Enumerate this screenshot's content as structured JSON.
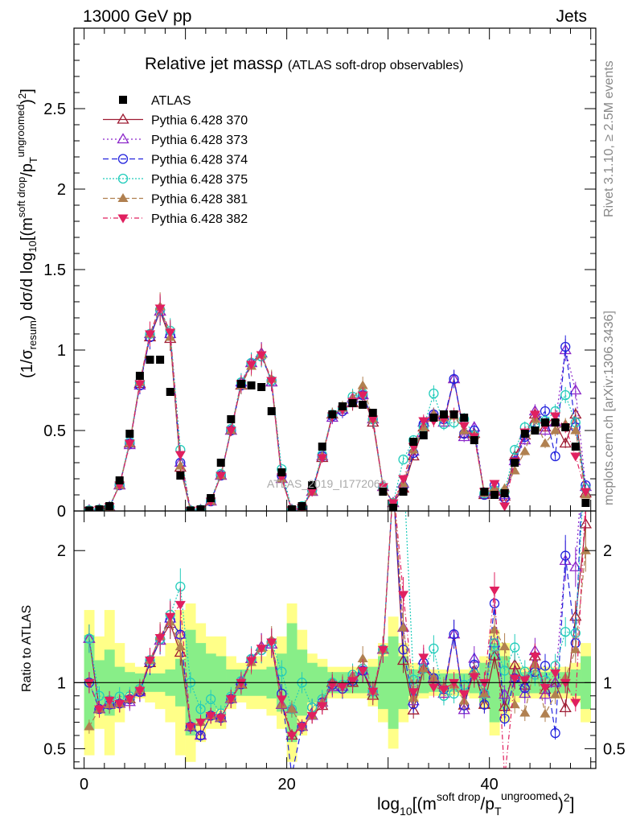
{
  "header": {
    "energy_label": "13000 GeV pp",
    "category_label": "Jets",
    "title": "Relative jet massρ",
    "subtitle": "(ATLAS soft-drop observables)",
    "side_right_top": "Rivet 3.1.10, ≥ 2.5M events",
    "side_right_bottom": "mcplots.cern.ch [arXiv:1306.3436]",
    "watermark": "ATLAS_2019_I1772062"
  },
  "axes": {
    "ylabel_main": "(1/σ_resum) dσ/d log10[(m^soft drop/p_T^ungroomed)^2]",
    "ylabel_ratio": "Ratio to ATLAS",
    "xlabel": "log10[(m^soft drop/p_T^ungroomed)^2]",
    "xlim": [
      -1,
      50.5
    ],
    "ylim_main": [
      0,
      3.0
    ],
    "ylim_ratio": [
      0.35,
      2.3
    ],
    "xticks": [
      "0",
      "20",
      "40"
    ],
    "yticks_main": [
      "0",
      "0.5",
      "1",
      "1.5",
      "2",
      "2.5"
    ],
    "yticks_ratio": [
      "0.5",
      "1",
      "2"
    ]
  },
  "colors": {
    "data": "#000000",
    "s370": "#9e1b32",
    "s373": "#8b26c9",
    "s374": "#2222dd",
    "s375": "#22ccbb",
    "s381": "#b08050",
    "s382": "#e0205f",
    "band_outer": "#ffff88",
    "band_inner": "#88ee88"
  },
  "chart_data": {
    "type": "line",
    "x": [
      0.5,
      1.5,
      2.5,
      3.5,
      4.5,
      5.5,
      6.5,
      7.5,
      8.5,
      9.5,
      10.5,
      11.5,
      12.5,
      13.5,
      14.5,
      15.5,
      16.5,
      17.5,
      18.5,
      19.5,
      20.5,
      21.5,
      22.5,
      23.5,
      24.5,
      25.5,
      26.5,
      27.5,
      28.5,
      29.5,
      30.5,
      31.5,
      32.5,
      33.5,
      34.5,
      35.5,
      36.5,
      37.5,
      38.5,
      39.5,
      40.5,
      41.5,
      42.5,
      43.5,
      44.5,
      45.5,
      46.5,
      47.5,
      48.5,
      49.5
    ],
    "data": {
      "name": "ATLAS",
      "values": [
        0.003,
        0.01,
        0.03,
        0.19,
        0.48,
        0.84,
        0.94,
        0.94,
        0.74,
        0.22,
        0.003,
        0.01,
        0.08,
        0.3,
        0.57,
        0.79,
        0.78,
        0.77,
        0.62,
        0.24,
        0.01,
        0.03,
        0.16,
        0.4,
        0.6,
        0.65,
        0.67,
        0.66,
        0.61,
        0.12,
        0.02,
        0.12,
        0.43,
        0.47,
        0.58,
        0.6,
        0.6,
        0.58,
        0.44,
        0.12,
        0.1,
        0.11,
        0.3,
        0.48,
        0.5,
        0.55,
        0.55,
        0.52,
        0.4,
        0.05
      ],
      "ratio_band_inner": [
        0.36,
        0.17,
        0.25,
        0.12,
        0.08,
        0.07,
        0.07,
        0.07,
        0.1,
        0.18,
        0.4,
        0.3,
        0.22,
        0.2,
        0.1,
        0.1,
        0.1,
        0.1,
        0.12,
        0.22,
        0.45,
        0.25,
        0.15,
        0.12,
        0.08,
        0.08,
        0.08,
        0.08,
        0.12,
        0.2,
        0.35,
        0.2,
        0.1,
        0.08,
        0.07,
        0.07,
        0.07,
        0.07,
        0.08,
        0.15,
        0.3,
        0.2,
        0.1,
        0.08,
        0.08,
        0.08,
        0.08,
        0.08,
        0.1,
        0.2
      ],
      "ratio_band_outer": [
        0.55,
        0.35,
        0.55,
        0.3,
        0.15,
        0.12,
        0.15,
        0.2,
        0.3,
        0.55,
        0.6,
        0.45,
        0.35,
        0.35,
        0.2,
        0.15,
        0.2,
        0.2,
        0.25,
        0.35,
        0.6,
        0.4,
        0.22,
        0.18,
        0.12,
        0.12,
        0.12,
        0.12,
        0.18,
        0.3,
        0.5,
        0.3,
        0.15,
        0.12,
        0.1,
        0.1,
        0.1,
        0.1,
        0.12,
        0.2,
        0.4,
        0.3,
        0.15,
        0.12,
        0.12,
        0.12,
        0.12,
        0.12,
        0.15,
        0.3
      ]
    },
    "series": [
      {
        "name": "Pythia 6.428 370",
        "color_key": "s370",
        "values": [
          0.004,
          0.008,
          0.025,
          0.16,
          0.42,
          0.79,
          1.08,
          1.24,
          1.07,
          0.27,
          0.002,
          0.006,
          0.06,
          0.22,
          0.5,
          0.78,
          0.92,
          0.98,
          0.8,
          0.2,
          0.006,
          0.02,
          0.12,
          0.33,
          0.6,
          0.63,
          0.67,
          0.72,
          0.55,
          0.15,
          0.05,
          0.14,
          0.34,
          0.52,
          0.6,
          0.55,
          0.82,
          0.48,
          0.48,
          0.1,
          0.12,
          0.09,
          0.34,
          0.47,
          0.6,
          0.52,
          0.55,
          0.42,
          0.6,
          0.11
        ]
      },
      {
        "name": "Pythia 6.428 373",
        "color_key": "s373",
        "values": [
          0.004,
          0.008,
          0.025,
          0.16,
          0.41,
          0.78,
          1.1,
          1.24,
          1.1,
          0.3,
          0.002,
          0.006,
          0.06,
          0.22,
          0.5,
          0.8,
          0.92,
          0.98,
          0.8,
          0.2,
          0.008,
          0.02,
          0.12,
          0.34,
          0.58,
          0.63,
          0.7,
          0.72,
          0.57,
          0.15,
          0.05,
          0.17,
          0.37,
          0.55,
          0.6,
          0.55,
          0.82,
          0.46,
          0.52,
          0.11,
          0.13,
          0.1,
          0.31,
          0.44,
          0.62,
          0.5,
          0.55,
          1.0,
          0.75,
          0.15
        ]
      },
      {
        "name": "Pythia 6.428 374",
        "color_key": "s374",
        "values": [
          0.003,
          0.008,
          0.025,
          0.16,
          0.42,
          0.78,
          1.08,
          1.25,
          1.09,
          0.3,
          0.002,
          0.006,
          0.06,
          0.22,
          0.5,
          0.78,
          0.92,
          0.96,
          0.81,
          0.22,
          0.003,
          0.02,
          0.13,
          0.34,
          0.59,
          0.62,
          0.68,
          0.72,
          0.57,
          0.15,
          0.05,
          0.15,
          0.36,
          0.54,
          0.6,
          0.57,
          0.82,
          0.48,
          0.5,
          0.1,
          0.16,
          0.08,
          0.31,
          0.46,
          0.54,
          0.62,
          0.34,
          1.02,
          0.52,
          0.16
        ]
      },
      {
        "name": "Pythia 6.428 375",
        "color_key": "s375",
        "values": [
          0.004,
          0.009,
          0.026,
          0.17,
          0.43,
          0.8,
          1.1,
          1.25,
          1.12,
          0.38,
          0.003,
          0.008,
          0.07,
          0.23,
          0.51,
          0.8,
          0.92,
          0.96,
          0.81,
          0.26,
          0.008,
          0.03,
          0.13,
          0.35,
          0.6,
          0.64,
          0.71,
          0.73,
          0.57,
          0.15,
          0.05,
          0.32,
          0.44,
          0.52,
          0.73,
          0.54,
          0.55,
          0.57,
          0.47,
          0.11,
          0.13,
          0.12,
          0.38,
          0.52,
          0.53,
          0.56,
          0.62,
          0.72,
          0.55,
          0.14
        ]
      },
      {
        "name": "Pythia 6.428 381",
        "color_key": "s381",
        "values": [
          0.002,
          0.008,
          0.025,
          0.16,
          0.42,
          0.8,
          1.1,
          1.27,
          1.08,
          0.28,
          0.002,
          0.007,
          0.06,
          0.22,
          0.5,
          0.78,
          0.9,
          0.97,
          0.82,
          0.2,
          0.008,
          0.02,
          0.12,
          0.34,
          0.6,
          0.64,
          0.7,
          0.78,
          0.57,
          0.15,
          0.05,
          0.17,
          0.38,
          0.52,
          0.6,
          0.58,
          0.59,
          0.5,
          0.47,
          0.11,
          0.14,
          0.14,
          0.25,
          0.37,
          0.57,
          0.42,
          0.5,
          0.54,
          0.5,
          0.1
        ]
      },
      {
        "name": "Pythia 6.428 382",
        "color_key": "s382",
        "values": [
          0.003,
          0.008,
          0.026,
          0.16,
          0.42,
          0.79,
          1.1,
          1.26,
          1.11,
          0.35,
          0.002,
          0.007,
          0.06,
          0.22,
          0.5,
          0.79,
          0.91,
          0.97,
          0.81,
          0.21,
          0.006,
          0.02,
          0.12,
          0.33,
          0.59,
          0.63,
          0.68,
          0.72,
          0.57,
          0.15,
          0.05,
          0.2,
          0.4,
          0.56,
          0.56,
          0.57,
          0.6,
          0.53,
          0.46,
          0.12,
          0.17,
          0.03,
          0.31,
          0.49,
          0.6,
          0.53,
          0.59,
          0.52,
          0.34,
          0.12
        ]
      }
    ],
    "legend_placement": "top-left",
    "grid": false
  }
}
